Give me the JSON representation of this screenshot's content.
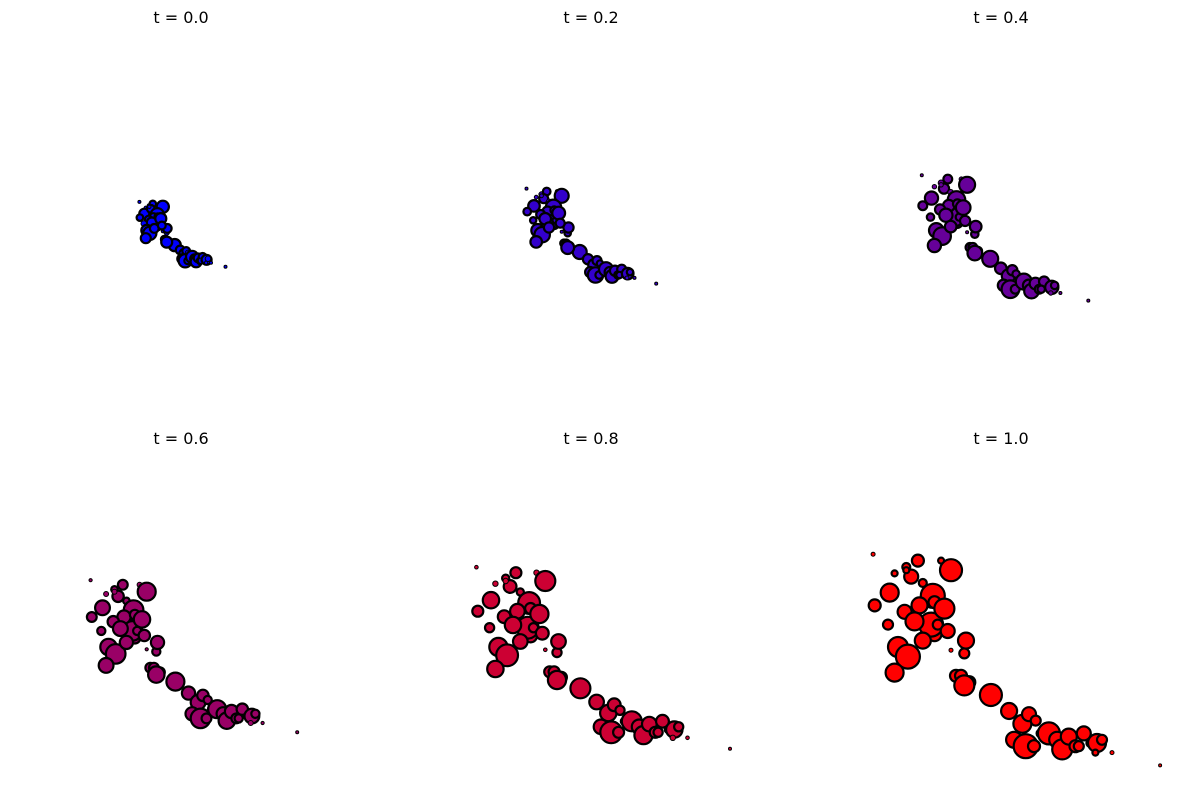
{
  "chart_data": [
    {
      "type": "scatter",
      "title": "t = 0.0",
      "xlabel": "",
      "ylabel": "",
      "grid": false,
      "axes_visible": false,
      "color": "#0000ff",
      "points": [
        {
          "x": 0.62,
          "y": 0.51,
          "r": 7
        },
        {
          "x": 0.72,
          "y": 0.56,
          "r": 2
        },
        {
          "x": 0.6,
          "y": 0.48,
          "r": 12
        },
        {
          "x": 0.64,
          "y": 0.48,
          "r": 5
        },
        {
          "x": 0.75,
          "y": 0.64,
          "r": 6
        },
        {
          "x": 0.96,
          "y": 0.7,
          "r": 11
        },
        {
          "x": 0.79,
          "y": 0.56,
          "r": 2
        },
        {
          "x": 0.8,
          "y": 0.57,
          "r": 5
        },
        {
          "x": 0.81,
          "y": 0.53,
          "r": 8
        },
        {
          "x": 0.78,
          "y": 0.64,
          "r": 6
        },
        {
          "x": 0.83,
          "y": 0.66,
          "r": 6
        },
        {
          "x": 0.8,
          "y": 0.67,
          "r": 10
        },
        {
          "x": 1.07,
          "y": 0.75,
          "r": 8
        },
        {
          "x": 1.15,
          "y": 0.79,
          "r": 9
        },
        {
          "x": 1.19,
          "y": 0.76,
          "r": 7
        },
        {
          "x": 1.1,
          "y": 0.84,
          "r": 8
        },
        {
          "x": 1.23,
          "y": 0.78,
          "r": 5
        },
        {
          "x": 1.26,
          "y": 0.82,
          "r": 4
        },
        {
          "x": 1.17,
          "y": 0.86,
          "r": 12
        },
        {
          "x": 1.22,
          "y": 0.86,
          "r": 6
        },
        {
          "x": 1.31,
          "y": 0.82,
          "r": 11
        },
        {
          "x": 1.36,
          "y": 0.84,
          "r": 8
        },
        {
          "x": 1.39,
          "y": 0.87,
          "r": 10
        },
        {
          "x": 1.43,
          "y": 0.83,
          "r": 8
        },
        {
          "x": 1.47,
          "y": 0.86,
          "r": 6
        },
        {
          "x": 1.52,
          "y": 0.82,
          "r": 7
        },
        {
          "x": 1.49,
          "y": 0.86,
          "r": 5
        },
        {
          "x": 1.56,
          "y": 0.85,
          "r": 4
        },
        {
          "x": 1.6,
          "y": 0.85,
          "r": 9
        },
        {
          "x": 1.63,
          "y": 0.84,
          "r": 5
        },
        {
          "x": 1.59,
          "y": 0.88,
          "r": 3
        },
        {
          "x": 1.69,
          "y": 0.88,
          "r": 2
        },
        {
          "x": 1.98,
          "y": 0.92,
          "r": 1
        },
        {
          "x": 0.25,
          "y": 0.26,
          "r": 2
        },
        {
          "x": 0.38,
          "y": 0.32,
          "r": 3
        },
        {
          "x": 0.35,
          "y": 0.38,
          "r": 9
        },
        {
          "x": 0.45,
          "y": 0.3,
          "r": 4
        },
        {
          "x": 0.52,
          "y": 0.28,
          "r": 6
        },
        {
          "x": 0.48,
          "y": 0.33,
          "r": 7
        },
        {
          "x": 0.55,
          "y": 0.35,
          "r": 4
        },
        {
          "x": 0.66,
          "y": 0.28,
          "r": 3
        },
        {
          "x": 0.72,
          "y": 0.31,
          "r": 11
        },
        {
          "x": 0.61,
          "y": 0.39,
          "r": 12
        },
        {
          "x": 0.53,
          "y": 0.42,
          "r": 8
        },
        {
          "x": 0.44,
          "y": 0.44,
          "r": 7
        },
        {
          "x": 0.5,
          "y": 0.47,
          "r": 9
        },
        {
          "x": 0.62,
          "y": 0.41,
          "r": 6
        },
        {
          "x": 0.68,
          "y": 0.43,
          "r": 10
        },
        {
          "x": 0.34,
          "y": 0.48,
          "r": 5
        },
        {
          "x": 0.4,
          "y": 0.55,
          "r": 10
        },
        {
          "x": 0.46,
          "y": 0.58,
          "r": 12
        },
        {
          "x": 0.55,
          "y": 0.53,
          "r": 8
        },
        {
          "x": 0.26,
          "y": 0.42,
          "r": 6
        },
        {
          "x": 0.7,
          "y": 0.5,
          "r": 7
        },
        {
          "x": 0.38,
          "y": 0.63,
          "r": 9
        },
        {
          "x": 0.45,
          "y": 0.31,
          "r": 3
        }
      ]
    },
    {
      "type": "scatter",
      "title": "t = 0.2",
      "xlabel": "",
      "ylabel": "",
      "grid": false,
      "axes_visible": false,
      "color": "#3300cc"
    },
    {
      "type": "scatter",
      "title": "t = 0.4",
      "xlabel": "",
      "ylabel": "",
      "grid": false,
      "axes_visible": false,
      "color": "#660099"
    },
    {
      "type": "scatter",
      "title": "t = 0.6",
      "xlabel": "",
      "ylabel": "",
      "grid": false,
      "axes_visible": false,
      "color": "#990066"
    },
    {
      "type": "scatter",
      "title": "t = 0.8",
      "xlabel": "",
      "ylabel": "",
      "grid": false,
      "axes_visible": false,
      "color": "#cc0033"
    },
    {
      "type": "scatter",
      "title": "t = 1.0",
      "xlabel": "",
      "ylabel": "",
      "grid": false,
      "axes_visible": false,
      "color": "#ff0000"
    }
  ],
  "panel_t": [
    0.0,
    0.2,
    0.4,
    0.6,
    0.8,
    1.0
  ],
  "x_range": [
    -0.1,
    2.1
  ],
  "y_range": [
    -0.05,
    1.05
  ],
  "edge_color": "#000000"
}
